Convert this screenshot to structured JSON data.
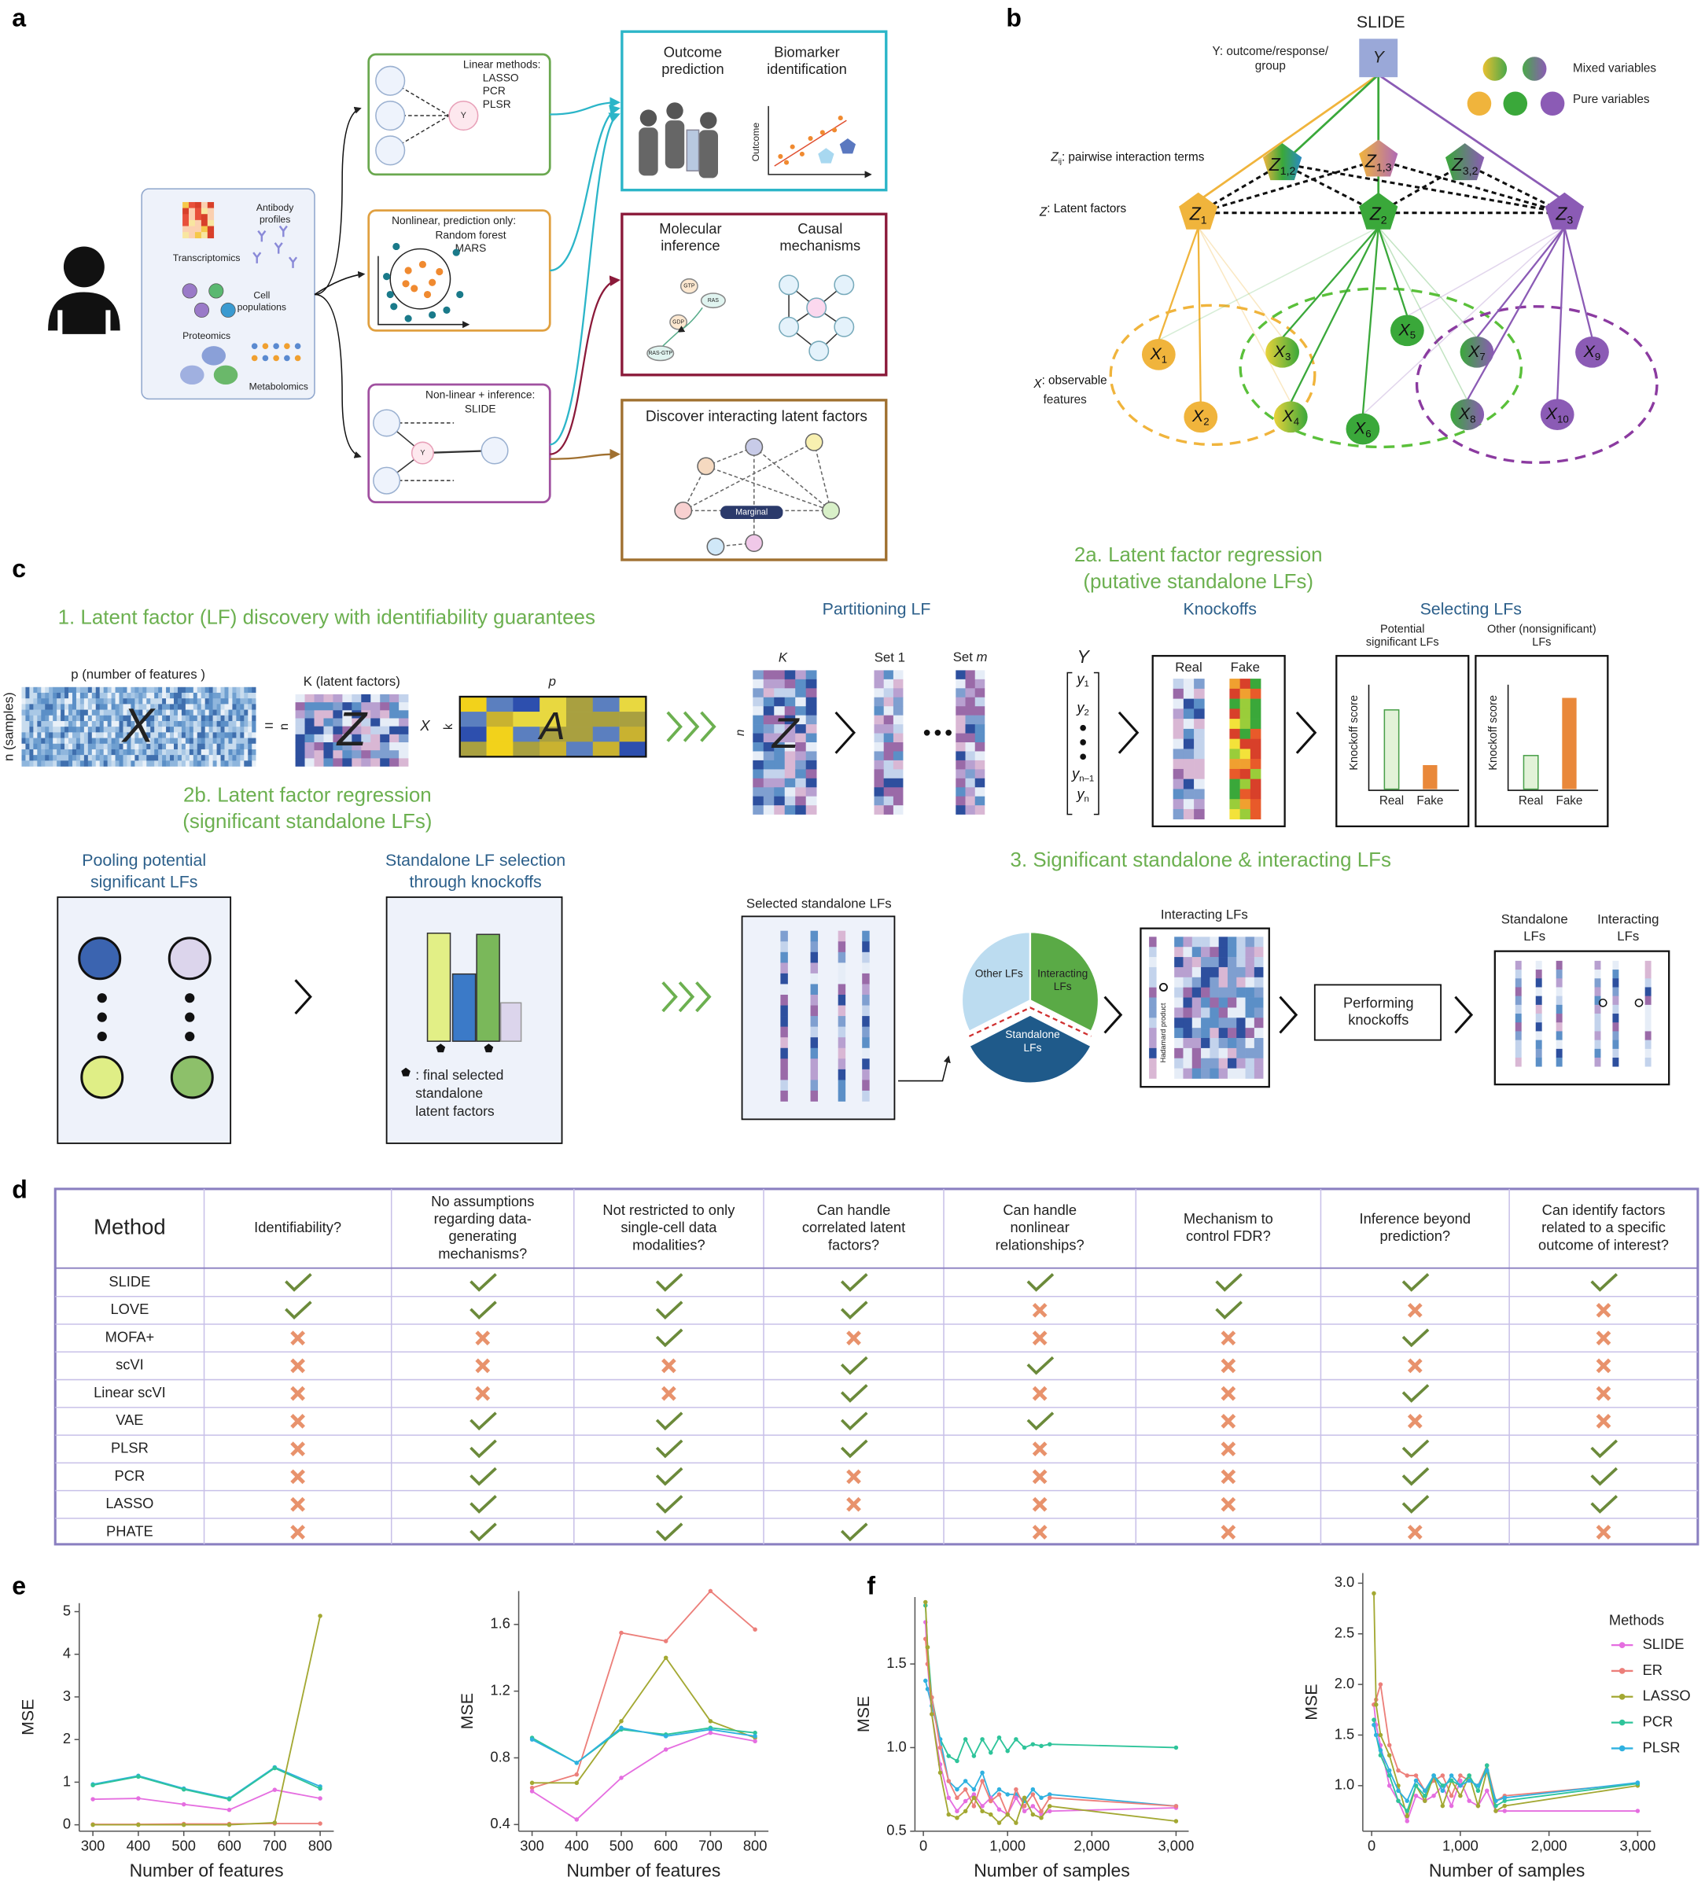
{
  "panel_labels": [
    "a",
    "b",
    "c",
    "d",
    "e",
    "f"
  ],
  "panel_a": {
    "data_types": [
      [
        "Transcriptomics"
      ],
      [
        "Antibody",
        "profiles"
      ],
      [
        "Cell",
        "populations"
      ],
      [
        "Proteomics"
      ],
      [
        "Metabolomics"
      ]
    ],
    "linear": {
      "title": "Linear methods:",
      "items": [
        "LASSO",
        "PCR",
        "PLSR"
      ],
      "node": "Y"
    },
    "nonlinear": {
      "title": "Nonlinear, prediction only:",
      "items": [
        "Random forest",
        "MARS"
      ]
    },
    "inference": {
      "title": "Non-linear + inference:",
      "items": [
        "SLIDE"
      ],
      "node": "Y"
    },
    "outcomes": {
      "left": [
        "Outcome",
        "prediction"
      ],
      "right": [
        "Biomarker",
        "identification"
      ],
      "axis": "Outcome"
    },
    "mechanisms": {
      "left": [
        "Molecular",
        "inference"
      ],
      "right": [
        "Causal",
        "mechanisms"
      ],
      "molecules": [
        "GTP",
        "RAS",
        "GDP",
        "RAS-GTP"
      ]
    },
    "interacting": {
      "title": "Discover interacting latent factors",
      "center": "Marginal"
    }
  },
  "panel_b": {
    "title": "SLIDE",
    "y_desc": [
      "Y: outcome/response/",
      "group"
    ],
    "y_node": "Y",
    "legend": [
      "Mixed variables",
      "Pure variables"
    ],
    "row_labels": [
      {
        "symbol": "Z",
        "sub": "ij",
        "lines": [
          ": pairwise interaction terms"
        ]
      },
      {
        "symbol": "Z",
        "lines": [
          ": Latent factors"
        ]
      },
      {
        "symbol": "X",
        "lines": [
          ": observable",
          "features"
        ]
      }
    ],
    "interactions": [
      {
        "symbol": "Z",
        "sub": "1,2"
      },
      {
        "symbol": "Z",
        "sub": "1,3"
      },
      {
        "symbol": "Z",
        "sub": "3,2"
      }
    ],
    "factors": [
      {
        "symbol": "Z",
        "sub": "1"
      },
      {
        "symbol": "Z",
        "sub": "2"
      },
      {
        "symbol": "Z",
        "sub": "3"
      }
    ],
    "features": [
      {
        "symbol": "X",
        "sub": "1"
      },
      {
        "symbol": "X",
        "sub": "2"
      },
      {
        "symbol": "X",
        "sub": "3"
      },
      {
        "symbol": "X",
        "sub": "4"
      },
      {
        "symbol": "X",
        "sub": "5"
      },
      {
        "symbol": "X",
        "sub": "6"
      },
      {
        "symbol": "X",
        "sub": "7"
      },
      {
        "symbol": "X",
        "sub": "8"
      },
      {
        "symbol": "X",
        "sub": "9"
      },
      {
        "symbol": "X",
        "sub": "10"
      }
    ]
  },
  "panel_c": {
    "step1": {
      "title": "1. Latent factor (LF) discovery with identifiability guarantees",
      "p_label": "p (number of features )",
      "n_label": "n (samples)",
      "x_matrix": "X",
      "equals": "=",
      "n": "n",
      "k_label": "K (latent factors)",
      "z_matrix": "Z",
      "times": "X",
      "k": "k",
      "p": "p",
      "a_matrix": "A"
    },
    "partition": {
      "title": "Partitioning LF",
      "k": "K",
      "n": "n",
      "z": "Z",
      "set1": "Set 1",
      "setm": [
        "Set ",
        "m"
      ]
    },
    "step2a": {
      "title": [
        "2a. Latent factor regression",
        "(putative standalone LFs)"
      ],
      "y": "Y",
      "y_entries": [
        {
          "symbol": "y",
          "sub": "1"
        },
        {
          "symbol": "y",
          "sub": "2"
        },
        {
          "symbol": "y",
          "sub": "n–1"
        },
        {
          "symbol": "y",
          "sub": "n"
        }
      ],
      "knockoffs": "Knockoffs",
      "real": "Real",
      "fake": "Fake",
      "selecting": "Selecting LFs",
      "potential": [
        "Potential",
        "significant LFs"
      ],
      "other": [
        "Other (nonsignificant)",
        "LFs"
      ],
      "score": "Knockoff score",
      "real2": "Real",
      "fake2": "Fake"
    },
    "step2b": {
      "title": [
        "2b. Latent factor regression",
        "(significant standalone LFs)"
      ],
      "pooling": [
        "Pooling potential",
        "significant LFs"
      ],
      "selection": [
        "Standalone LF selection",
        "through knockoffs"
      ],
      "legend": [
        ": final selected",
        "standalone",
        "latent factors"
      ]
    },
    "step3": {
      "title": "3. Significant standalone & interacting LFs",
      "selected": "Selected standalone LFs",
      "pie": {
        "other": "Other LFs",
        "interacting": [
          "Interacting",
          "LFs"
        ],
        "standalone": [
          "Standalone",
          "LFs"
        ]
      },
      "interacting": "Interacting LFs",
      "hadamard": "Hadamard product",
      "performing": [
        "Performing",
        "knockoffs"
      ],
      "out_standalone": [
        "Standalone",
        "LFs"
      ],
      "out_interacting": [
        "Interacting",
        "LFs"
      ]
    }
  },
  "table": {
    "header": [
      [
        "Method"
      ],
      [
        "Identifiability?"
      ],
      [
        "No assumptions",
        "regarding data-",
        "generating",
        "mechanisms?"
      ],
      [
        "Not restricted to only",
        "single-cell data",
        "modalities?"
      ],
      [
        "Can handle",
        "correlated latent",
        "factors?"
      ],
      [
        "Can handle",
        "nonlinear",
        "relationships?"
      ],
      [
        "Mechanism to",
        "control FDR?"
      ],
      [
        "Inference beyond",
        "prediction?"
      ],
      [
        "Can identify factors",
        "related to a specific",
        "outcome of interest?"
      ]
    ],
    "rows": [
      {
        "method": "SLIDE",
        "values": [
          true,
          true,
          true,
          true,
          true,
          true,
          true,
          true
        ]
      },
      {
        "method": "LOVE",
        "values": [
          true,
          true,
          true,
          true,
          false,
          true,
          false,
          false
        ]
      },
      {
        "method": "MOFA+",
        "values": [
          false,
          false,
          true,
          false,
          false,
          false,
          true,
          false
        ]
      },
      {
        "method": "scVI",
        "values": [
          false,
          false,
          false,
          true,
          true,
          false,
          false,
          false
        ]
      },
      {
        "method": "Linear scVI",
        "values": [
          false,
          false,
          false,
          true,
          false,
          false,
          true,
          false
        ]
      },
      {
        "method": "VAE",
        "values": [
          false,
          true,
          true,
          true,
          true,
          false,
          false,
          false
        ]
      },
      {
        "method": "PLSR",
        "values": [
          false,
          true,
          true,
          true,
          false,
          false,
          true,
          true
        ]
      },
      {
        "method": "PCR",
        "values": [
          false,
          true,
          true,
          false,
          false,
          false,
          true,
          true
        ]
      },
      {
        "method": "LASSO",
        "values": [
          false,
          true,
          true,
          false,
          false,
          false,
          true,
          true
        ]
      },
      {
        "method": "PHATE",
        "values": [
          false,
          true,
          true,
          true,
          false,
          false,
          false,
          false
        ]
      }
    ],
    "check_color": "#6b8a3a",
    "cross_color": "#e8926c"
  },
  "chart_data": [
    {
      "type": "line",
      "x_label": "Number of features",
      "y_label": "MSE",
      "x": [
        300,
        400,
        500,
        600,
        700,
        800
      ],
      "xlim": [
        270,
        830
      ],
      "xticks": [
        300,
        400,
        500,
        600,
        700,
        800
      ],
      "ylim": [
        -0.15,
        5.2
      ],
      "yticks": [
        0,
        1,
        2,
        3,
        4,
        5
      ],
      "series": [
        {
          "color": "#2fb1e0",
          "values": [
            0.95,
            1.15,
            0.85,
            0.62,
            1.35,
            0.9
          ]
        },
        {
          "color": "#2ec49a",
          "values": [
            0.93,
            1.13,
            0.83,
            0.6,
            1.33,
            0.85
          ]
        },
        {
          "color": "#e56ee0",
          "values": [
            0.6,
            0.62,
            0.48,
            0.35,
            0.82,
            0.62
          ]
        },
        {
          "color": "#ec7f7a",
          "values": [
            0.01,
            0.01,
            0.02,
            0.02,
            0.03,
            0.03
          ]
        },
        {
          "color": "#a3a832",
          "values": [
            0,
            0,
            0,
            0,
            0.05,
            4.9
          ]
        }
      ]
    },
    {
      "type": "line",
      "x_label": "Number of features",
      "y_label": "MSE",
      "x": [
        300,
        400,
        500,
        600,
        700,
        800
      ],
      "xlim": [
        270,
        830
      ],
      "xticks": [
        300,
        400,
        500,
        600,
        700,
        800
      ],
      "ylim": [
        0.36,
        1.8
      ],
      "yticks": [
        0.4,
        0.8,
        1.2,
        1.6
      ],
      "series": [
        {
          "color": "#ec7f7a",
          "values": [
            0.62,
            0.7,
            1.55,
            1.5,
            1.8,
            1.57
          ]
        },
        {
          "color": "#a3a832",
          "values": [
            0.65,
            0.65,
            1.02,
            1.4,
            1.02,
            0.92
          ]
        },
        {
          "color": "#2ec49a",
          "values": [
            0.92,
            0.77,
            0.97,
            0.94,
            0.98,
            0.95
          ]
        },
        {
          "color": "#2fb1e0",
          "values": [
            0.91,
            0.77,
            0.98,
            0.93,
            0.97,
            0.93
          ]
        },
        {
          "color": "#e56ee0",
          "values": [
            0.6,
            0.43,
            0.68,
            0.85,
            0.95,
            0.9
          ]
        }
      ]
    },
    {
      "type": "line",
      "x_label": "Number of samples",
      "y_label": "MSE",
      "x": [
        25,
        50,
        100,
        200,
        300,
        400,
        500,
        600,
        700,
        800,
        900,
        1000,
        1100,
        1200,
        1300,
        1400,
        1500,
        3000
      ],
      "xlim": [
        -100,
        3150
      ],
      "xticks": [
        0,
        {
          "value": 1000,
          "label": "1,000"
        },
        {
          "value": 2000,
          "label": "2,000"
        },
        {
          "value": 3000,
          "label": "3,000"
        }
      ],
      "ylim": [
        0.5,
        1.9
      ],
      "yticks": [
        0.5,
        {
          "value": 1,
          "label": "1.0"
        },
        1.5
      ],
      "series": [
        {
          "color": "#2ec49a",
          "values": [
            1.85,
            1.6,
            1.3,
            1.05,
            0.95,
            0.92,
            1.05,
            0.95,
            1.05,
            0.97,
            1.06,
            0.98,
            1.05,
            1.0,
            1.02,
            1.01,
            1.02,
            1.0
          ]
        },
        {
          "color": "#2fb1e0",
          "values": [
            1.4,
            1.35,
            1.25,
            1.05,
            0.8,
            0.75,
            0.8,
            0.75,
            0.85,
            0.7,
            0.75,
            0.72,
            0.72,
            0.68,
            0.75,
            0.7,
            0.72,
            0.65
          ]
        },
        {
          "color": "#e56ee0",
          "values": [
            1.75,
            1.5,
            1.2,
            0.9,
            0.7,
            0.62,
            0.68,
            0.72,
            0.65,
            0.7,
            0.63,
            0.6,
            0.7,
            0.62,
            0.65,
            0.6,
            0.62,
            0.64
          ]
        },
        {
          "color": "#ec7f7a",
          "values": [
            1.65,
            1.5,
            1.3,
            1.0,
            0.8,
            0.7,
            0.75,
            0.65,
            0.8,
            0.68,
            0.72,
            0.6,
            0.75,
            0.65,
            0.72,
            0.62,
            0.7,
            0.65
          ]
        },
        {
          "color": "#a3a832",
          "values": [
            1.87,
            1.6,
            1.2,
            0.85,
            0.6,
            0.58,
            0.62,
            0.7,
            0.62,
            0.6,
            0.55,
            0.6,
            0.55,
            0.7,
            0.6,
            0.58,
            0.65,
            0.56
          ]
        }
      ]
    },
    {
      "type": "line",
      "x_label": "Number of samples",
      "y_label": "MSE",
      "x": [
        25,
        50,
        100,
        200,
        300,
        400,
        500,
        600,
        700,
        800,
        900,
        1000,
        1100,
        1200,
        1300,
        1400,
        1500,
        3000
      ],
      "xlim": [
        -100,
        3150
      ],
      "xticks": [
        0,
        {
          "value": 1000,
          "label": "1,000"
        },
        {
          "value": 2000,
          "label": "2,000"
        },
        {
          "value": 3000,
          "label": "3,000"
        }
      ],
      "ylim": [
        0.55,
        3.1
      ],
      "yticks": [
        {
          "value": 1,
          "label": "1.0"
        },
        1.5,
        {
          "value": 2,
          "label": "2.0"
        },
        2.5,
        {
          "value": 3,
          "label": "3.0"
        }
      ],
      "legend": "upper right",
      "legend_title": "Methods",
      "series": [
        {
          "name": "SLIDE",
          "color": "#e56ee0",
          "values": [
            1.8,
            1.6,
            1.4,
            1.0,
            0.85,
            0.65,
            0.9,
            0.85,
            0.9,
            1.0,
            0.8,
            1.05,
            0.85,
            0.8,
            0.95,
            0.75,
            0.75,
            0.75
          ]
        },
        {
          "name": "ER",
          "color": "#ec7f7a",
          "values": [
            1.8,
            1.85,
            2.0,
            1.4,
            1.15,
            1.1,
            1.1,
            0.95,
            1.05,
            1.1,
            0.9,
            1.1,
            1.05,
            1.0,
            1.2,
            0.85,
            0.9,
            1.02
          ]
        },
        {
          "name": "LASSO",
          "color": "#a3a832",
          "values": [
            2.9,
            1.8,
            1.5,
            1.3,
            1.0,
            0.7,
            1.0,
            0.85,
            1.1,
            0.8,
            1.05,
            0.9,
            1.1,
            0.8,
            1.15,
            0.75,
            0.8,
            1.0
          ]
        },
        {
          "name": "PCR",
          "color": "#2ec49a",
          "values": [
            1.65,
            1.5,
            1.3,
            1.1,
            0.85,
            0.75,
            1.0,
            0.9,
            1.1,
            1.0,
            1.05,
            1.0,
            1.1,
            0.95,
            1.2,
            0.8,
            0.85,
            1.02
          ]
        },
        {
          "name": "PLSR",
          "color": "#2fb1e0",
          "values": [
            1.6,
            1.5,
            1.35,
            1.15,
            0.95,
            0.85,
            1.05,
            0.95,
            1.1,
            0.95,
            1.1,
            1.0,
            1.05,
            1.0,
            1.15,
            0.85,
            0.88,
            1.03
          ]
        }
      ]
    }
  ]
}
